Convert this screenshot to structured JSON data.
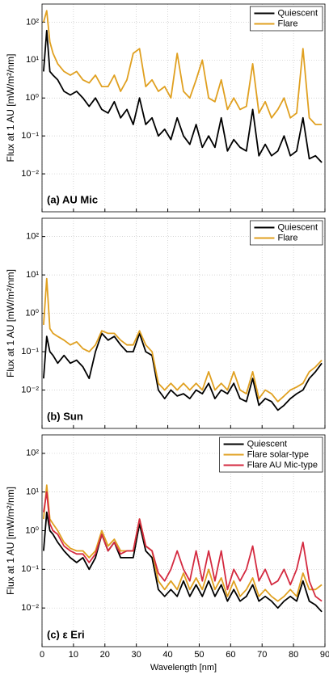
{
  "chart_data": [
    {
      "type": "line",
      "log_y": true,
      "grid": true,
      "legend": "upper right",
      "ylabel": "Flux at 1 AU [mW/m²/nm]",
      "annotation": "(a) AU Mic",
      "xlim": [
        0,
        90
      ],
      "xticks": [
        0,
        10,
        20,
        30,
        40,
        50,
        60,
        70,
        80,
        90
      ],
      "ylim": [
        0.001,
        300
      ],
      "yticks": [
        {
          "value": 0.01,
          "label": "10⁻²"
        },
        {
          "value": 0.1,
          "label": "10⁻¹"
        },
        {
          "value": 1,
          "label": "10⁰"
        },
        {
          "value": 10,
          "label": "10¹"
        },
        {
          "value": 100,
          "label": "10²"
        }
      ],
      "x": [
        0.5,
        1.5,
        2.5,
        3.5,
        5,
        7,
        9,
        11,
        13,
        15,
        17,
        19,
        21,
        23,
        25,
        27,
        29,
        31,
        33,
        35,
        37,
        39,
        41,
        43,
        45,
        47,
        49,
        51,
        53,
        55,
        57,
        59,
        61,
        63,
        65,
        67,
        69,
        71,
        73,
        75,
        77,
        79,
        81,
        83,
        85,
        87,
        89
      ],
      "series": [
        {
          "name": "Quiescent",
          "color": "#000000",
          "values": [
            5,
            60,
            5,
            4,
            3,
            1.5,
            1.2,
            1.5,
            1,
            0.6,
            1,
            0.5,
            0.4,
            0.8,
            0.3,
            0.5,
            0.2,
            1,
            0.2,
            0.3,
            0.1,
            0.15,
            0.08,
            0.3,
            0.1,
            0.06,
            0.2,
            0.05,
            0.1,
            0.05,
            0.3,
            0.04,
            0.08,
            0.05,
            0.04,
            0.5,
            0.03,
            0.06,
            0.03,
            0.04,
            0.1,
            0.03,
            0.04,
            0.3,
            0.025,
            0.03,
            0.02
          ]
        },
        {
          "name": "Flare",
          "color": "#e0a020",
          "values": [
            100,
            200,
            30,
            15,
            8,
            5,
            4,
            5,
            3,
            2.5,
            4,
            2,
            2,
            4,
            1.5,
            3,
            15,
            20,
            2,
            3,
            1.5,
            2,
            1,
            15,
            1.5,
            1,
            3,
            10,
            1,
            0.8,
            3,
            0.5,
            1,
            0.5,
            0.6,
            8,
            0.4,
            0.8,
            0.3,
            0.5,
            1,
            0.3,
            0.4,
            20,
            0.3,
            0.2,
            0.2
          ]
        }
      ]
    },
    {
      "type": "line",
      "log_y": true,
      "grid": true,
      "legend": "upper right",
      "ylabel": "Flux at 1 AU [mW/m²/nm]",
      "annotation": "(b) Sun",
      "xlim": [
        0,
        90
      ],
      "xticks": [
        0,
        10,
        20,
        30,
        40,
        50,
        60,
        70,
        80,
        90
      ],
      "ylim": [
        0.001,
        300
      ],
      "yticks": [
        {
          "value": 0.01,
          "label": "10⁻²"
        },
        {
          "value": 0.1,
          "label": "10⁻¹"
        },
        {
          "value": 1,
          "label": "10⁰"
        },
        {
          "value": 10,
          "label": "10¹"
        },
        {
          "value": 100,
          "label": "10²"
        }
      ],
      "x": [
        0.5,
        1.5,
        2.5,
        3.5,
        5,
        7,
        9,
        11,
        13,
        15,
        17,
        19,
        21,
        23,
        25,
        27,
        29,
        31,
        33,
        35,
        37,
        39,
        41,
        43,
        45,
        47,
        49,
        51,
        53,
        55,
        57,
        59,
        61,
        63,
        65,
        67,
        69,
        71,
        73,
        75,
        77,
        79,
        81,
        83,
        85,
        87,
        89
      ],
      "series": [
        {
          "name": "Quiescent",
          "color": "#000000",
          "values": [
            0.02,
            0.25,
            0.1,
            0.08,
            0.05,
            0.08,
            0.05,
            0.06,
            0.04,
            0.02,
            0.1,
            0.3,
            0.2,
            0.25,
            0.15,
            0.1,
            0.1,
            0.3,
            0.1,
            0.08,
            0.01,
            0.006,
            0.01,
            0.007,
            0.008,
            0.006,
            0.01,
            0.008,
            0.015,
            0.006,
            0.01,
            0.008,
            0.015,
            0.006,
            0.005,
            0.02,
            0.004,
            0.006,
            0.005,
            0.003,
            0.004,
            0.006,
            0.008,
            0.01,
            0.02,
            0.03,
            0.05
          ]
        },
        {
          "name": "Flare",
          "color": "#e0a020",
          "values": [
            0.5,
            8,
            0.4,
            0.3,
            0.25,
            0.2,
            0.15,
            0.18,
            0.12,
            0.1,
            0.15,
            0.35,
            0.3,
            0.3,
            0.2,
            0.15,
            0.15,
            0.35,
            0.15,
            0.1,
            0.015,
            0.01,
            0.015,
            0.01,
            0.015,
            0.01,
            0.015,
            0.01,
            0.03,
            0.01,
            0.015,
            0.01,
            0.03,
            0.01,
            0.008,
            0.03,
            0.006,
            0.01,
            0.008,
            0.005,
            0.007,
            0.01,
            0.012,
            0.015,
            0.03,
            0.04,
            0.06
          ]
        }
      ]
    },
    {
      "type": "line",
      "log_y": true,
      "grid": true,
      "legend": "upper right",
      "ylabel": "Flux at 1 AU [mW/m²/nm]",
      "xlabel": "Wavelength [nm]",
      "annotation": "(c) ε Eri",
      "xlim": [
        0,
        90
      ],
      "xticks": [
        0,
        10,
        20,
        30,
        40,
        50,
        60,
        70,
        80,
        90
      ],
      "ylim": [
        0.001,
        300
      ],
      "yticks": [
        {
          "value": 0.01,
          "label": "10⁻²"
        },
        {
          "value": 0.1,
          "label": "10⁻¹"
        },
        {
          "value": 1,
          "label": "10⁰"
        },
        {
          "value": 10,
          "label": "10¹"
        },
        {
          "value": 100,
          "label": "10²"
        }
      ],
      "x": [
        0.5,
        1.5,
        2.5,
        3.5,
        5,
        7,
        9,
        11,
        13,
        15,
        17,
        19,
        21,
        23,
        25,
        27,
        29,
        31,
        33,
        35,
        37,
        39,
        41,
        43,
        45,
        47,
        49,
        51,
        53,
        55,
        57,
        59,
        61,
        63,
        65,
        67,
        69,
        71,
        73,
        75,
        77,
        79,
        81,
        83,
        85,
        87,
        89
      ],
      "series": [
        {
          "name": "Quiescent",
          "color": "#000000",
          "values": [
            0.3,
            3,
            1,
            0.8,
            0.5,
            0.3,
            0.2,
            0.15,
            0.2,
            0.1,
            0.2,
            0.8,
            0.3,
            0.5,
            0.2,
            0.2,
            0.2,
            1.5,
            0.3,
            0.2,
            0.03,
            0.02,
            0.03,
            0.02,
            0.05,
            0.02,
            0.04,
            0.02,
            0.05,
            0.02,
            0.04,
            0.015,
            0.03,
            0.015,
            0.02,
            0.04,
            0.015,
            0.02,
            0.015,
            0.01,
            0.015,
            0.02,
            0.015,
            0.05,
            0.015,
            0.012,
            0.008
          ]
        },
        {
          "name": "Flare solar-type",
          "color": "#e0a020",
          "values": [
            2,
            15,
            2,
            1.5,
            1,
            0.5,
            0.35,
            0.3,
            0.3,
            0.2,
            0.3,
            1,
            0.4,
            0.6,
            0.3,
            0.3,
            0.3,
            2,
            0.4,
            0.3,
            0.05,
            0.03,
            0.05,
            0.03,
            0.08,
            0.03,
            0.06,
            0.03,
            0.1,
            0.03,
            0.06,
            0.02,
            0.05,
            0.02,
            0.03,
            0.06,
            0.02,
            0.03,
            0.02,
            0.015,
            0.02,
            0.03,
            0.02,
            0.08,
            0.03,
            0.03,
            0.04
          ]
        },
        {
          "name": "Flare AU Mic-type",
          "color": "#d42a40",
          "values": [
            3,
            10,
            1.5,
            1,
            0.8,
            0.4,
            0.3,
            0.25,
            0.25,
            0.15,
            0.25,
            0.8,
            0.3,
            0.5,
            0.25,
            0.3,
            0.3,
            2,
            0.4,
            0.3,
            0.08,
            0.05,
            0.1,
            0.3,
            0.1,
            0.05,
            0.3,
            0.05,
            0.3,
            0.05,
            0.3,
            0.03,
            0.1,
            0.05,
            0.1,
            0.4,
            0.05,
            0.1,
            0.04,
            0.05,
            0.1,
            0.04,
            0.1,
            0.5,
            0.05,
            0.02,
            0.015
          ]
        }
      ]
    }
  ]
}
